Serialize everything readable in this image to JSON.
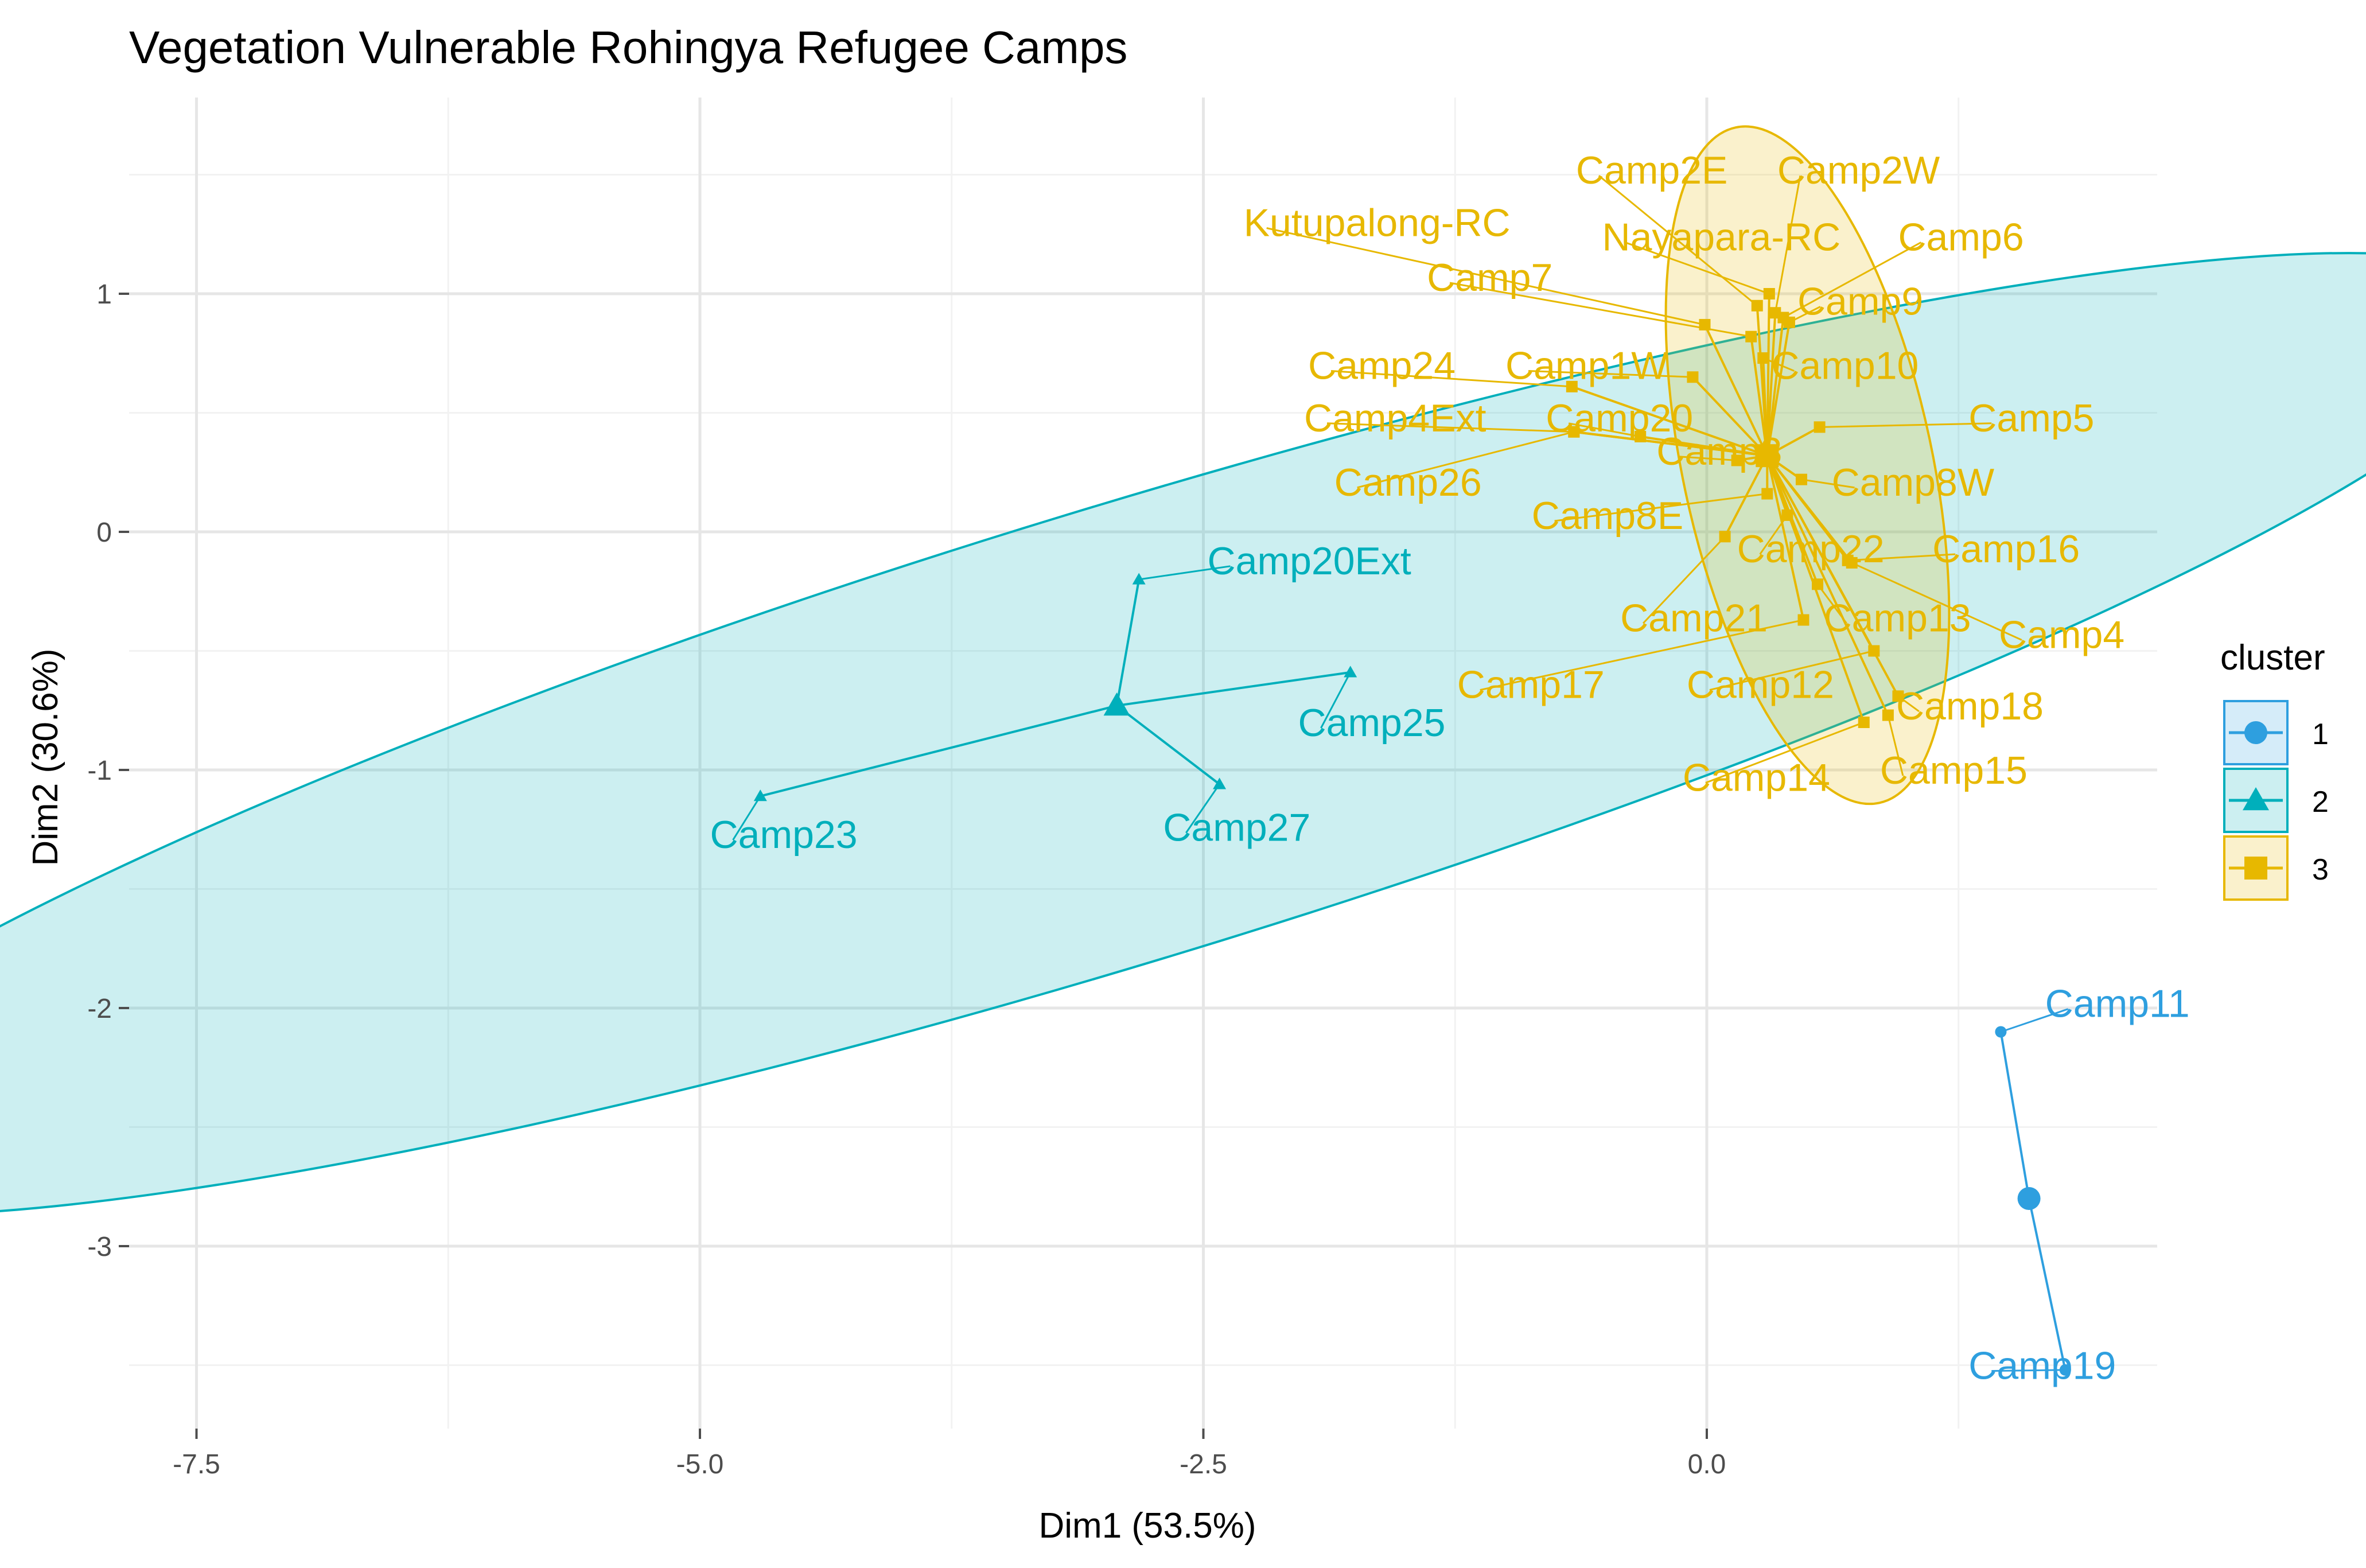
{
  "chart_data": {
    "type": "scatter",
    "title": "Vegetation Vulnerable Rohingya Refugee Camps",
    "xlabel": "Dim1 (53.5%)",
    "ylabel": "Dim2 (30.6%)",
    "xlim": [
      -8.2,
      2.2
    ],
    "ylim": [
      -3.8,
      1.65
    ],
    "x_ticks": [
      -7.5,
      -5.0,
      -2.5,
      0.0
    ],
    "x_tick_labels": [
      "-7.5",
      "-5.0",
      "-2.5",
      "0.0"
    ],
    "y_ticks": [
      1,
      0,
      -1,
      -2,
      -3
    ],
    "y_tick_labels": [
      "1",
      "0",
      "-1",
      "-2",
      "-3"
    ],
    "grid": true,
    "legend": {
      "title": "cluster",
      "position": "right",
      "items": [
        {
          "label": "1",
          "color": "#2E9FDF",
          "shape": "circle"
        },
        {
          "label": "2",
          "color": "#00AFBB",
          "shape": "triangle"
        },
        {
          "label": "3",
          "color": "#E7B800",
          "shape": "square"
        }
      ]
    },
    "clusters": [
      {
        "name": "1",
        "color": "#2E9FDF",
        "shape": "circle",
        "centroid": [
          1.6,
          -2.8
        ],
        "ellipse": null,
        "points": [
          {
            "label": "Camp11",
            "x": 1.46,
            "y": -2.1,
            "lx": 1.68,
            "ly": -1.98
          },
          {
            "label": "Camp19",
            "x": 1.78,
            "y": -3.52,
            "lx": 1.3,
            "ly": -3.5
          }
        ]
      },
      {
        "name": "2",
        "color": "#00AFBB",
        "shape": "triangle",
        "centroid": [
          -2.93,
          -0.73
        ],
        "ellipse": {
          "cx": -2.9,
          "cy": -0.85,
          "rx": 7.3,
          "ry": 0.95,
          "angle": 17
        },
        "points": [
          {
            "label": "Camp20Ext",
            "x": -2.82,
            "y": -0.2,
            "lx": -2.48,
            "ly": -0.12
          },
          {
            "label": "Camp25",
            "x": -1.77,
            "y": -0.59,
            "lx": -2.03,
            "ly": -0.8
          },
          {
            "label": "Camp23",
            "x": -4.7,
            "y": -1.11,
            "lx": -4.95,
            "ly": -1.27
          },
          {
            "label": "Camp27",
            "x": -2.42,
            "y": -1.06,
            "lx": -2.7,
            "ly": -1.24
          }
        ]
      },
      {
        "name": "3",
        "color": "#E7B800",
        "shape": "square",
        "centroid": [
          0.3,
          0.32
        ],
        "ellipse": {
          "cx": 0.5,
          "cy": 0.28,
          "rx": 0.62,
          "ry": 1.45,
          "angle": 12
        },
        "points": [
          {
            "label": "Camp2E",
            "x": 0.25,
            "y": 0.95,
            "lx": -0.65,
            "ly": 1.52
          },
          {
            "label": "Camp2W",
            "x": 0.34,
            "y": 0.92,
            "lx": 0.35,
            "ly": 1.52
          },
          {
            "label": "Kutupalong-RC",
            "x": -0.01,
            "y": 0.87,
            "lx": -2.3,
            "ly": 1.3
          },
          {
            "label": "Nayapara-RC",
            "x": 0.31,
            "y": 1.0,
            "lx": -0.52,
            "ly": 1.24
          },
          {
            "label": "Camp6",
            "x": 0.38,
            "y": 0.9,
            "lx": 0.95,
            "ly": 1.24
          },
          {
            "label": "Camp7",
            "x": 0.22,
            "y": 0.82,
            "lx": -1.39,
            "ly": 1.07
          },
          {
            "label": "Camp9",
            "x": 0.41,
            "y": 0.88,
            "lx": 0.45,
            "ly": 0.97
          },
          {
            "label": "Camp24",
            "x": -0.67,
            "y": 0.61,
            "lx": -1.98,
            "ly": 0.7
          },
          {
            "label": "Camp1W",
            "x": -0.07,
            "y": 0.65,
            "lx": -1.0,
            "ly": 0.7
          },
          {
            "label": "Camp10",
            "x": 0.28,
            "y": 0.73,
            "lx": 0.32,
            "ly": 0.7
          },
          {
            "label": "Camp4Ext",
            "x": -0.66,
            "y": 0.42,
            "lx": -2.0,
            "ly": 0.48
          },
          {
            "label": "Camp20",
            "x": -0.33,
            "y": 0.4,
            "lx": -0.8,
            "ly": 0.48
          },
          {
            "label": "Camp5",
            "x": 0.56,
            "y": 0.44,
            "lx": 1.3,
            "ly": 0.48
          },
          {
            "label": "Camp3",
            "x": 0.15,
            "y": 0.3,
            "lx": -0.25,
            "ly": 0.34
          },
          {
            "label": "Camp26",
            "x": -0.66,
            "y": 0.42,
            "lx": -1.85,
            "ly": 0.21
          },
          {
            "label": "Camp8W",
            "x": 0.47,
            "y": 0.22,
            "lx": 0.62,
            "ly": 0.21
          },
          {
            "label": "Camp8E",
            "x": 0.3,
            "y": 0.16,
            "lx": -0.87,
            "ly": 0.07
          },
          {
            "label": "Camp22",
            "x": 0.4,
            "y": 0.07,
            "lx": 0.15,
            "ly": -0.07
          },
          {
            "label": "Camp16",
            "x": 0.7,
            "y": -0.12,
            "lx": 1.12,
            "ly": -0.07
          },
          {
            "label": "Camp21",
            "x": 0.09,
            "y": -0.02,
            "lx": -0.43,
            "ly": -0.36
          },
          {
            "label": "Camp13",
            "x": 0.55,
            "y": -0.22,
            "lx": 0.58,
            "ly": -0.36
          },
          {
            "label": "Camp4",
            "x": 0.72,
            "y": -0.13,
            "lx": 1.45,
            "ly": -0.43
          },
          {
            "label": "Camp17",
            "x": 0.48,
            "y": -0.37,
            "lx": -1.24,
            "ly": -0.64
          },
          {
            "label": "Camp12",
            "x": 0.83,
            "y": -0.5,
            "lx": -0.1,
            "ly": -0.64
          },
          {
            "label": "Camp18",
            "x": 0.95,
            "y": -0.69,
            "lx": 0.94,
            "ly": -0.73
          },
          {
            "label": "Camp14",
            "x": 0.78,
            "y": -0.8,
            "lx": -0.12,
            "ly": -1.03
          },
          {
            "label": "Camp15",
            "x": 0.9,
            "y": -0.77,
            "lx": 0.86,
            "ly": -1.0
          }
        ]
      }
    ]
  }
}
